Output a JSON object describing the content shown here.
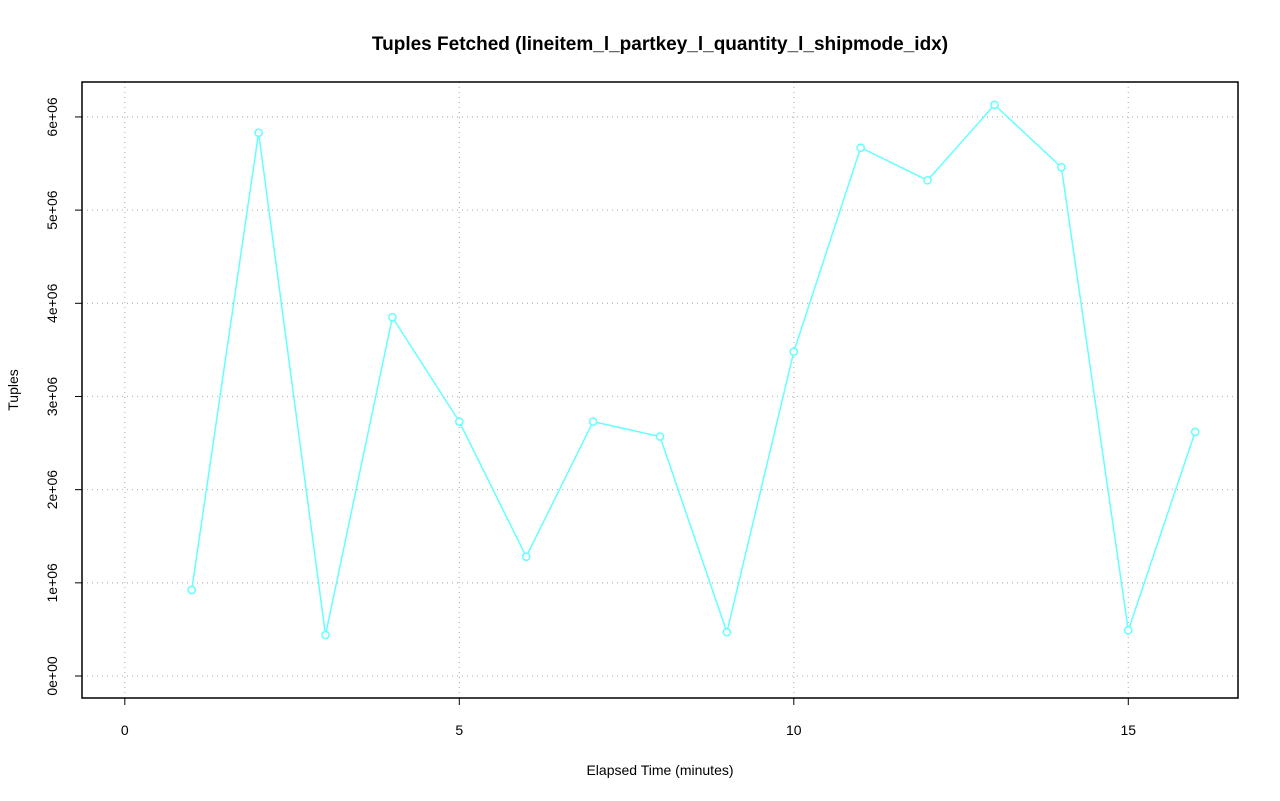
{
  "chart_data": {
    "type": "line",
    "title": "Tuples Fetched (lineitem_l_partkey_l_quantity_l_shipmode_idx)",
    "x_label": "Elapsed Time (minutes)",
    "y_label": "Tuples",
    "x": [
      1,
      2,
      3,
      4,
      5,
      6,
      7,
      8,
      9,
      10,
      11,
      12,
      13,
      14,
      15,
      16
    ],
    "series": [
      {
        "color": "#66ffff",
        "values": [
          923000,
          5830000,
          440000,
          3850000,
          2730000,
          1280000,
          2730000,
          2570000,
          470000,
          3480000,
          5670000,
          5320000,
          6130000,
          5460000,
          490000,
          2620000
        ]
      }
    ],
    "xlim": [
      -0.64,
      16.64
    ],
    "xticks": [
      0,
      5,
      10,
      15
    ],
    "ylim": [
      -236000,
      6375000
    ],
    "yticks": [
      {
        "value": 0,
        "label": "0e+00"
      },
      {
        "value": 1000000,
        "label": "1e+06"
      },
      {
        "value": 2000000,
        "label": "2e+06"
      },
      {
        "value": 3000000,
        "label": "3e+06"
      },
      {
        "value": 4000000,
        "label": "4e+06"
      },
      {
        "value": 5000000,
        "label": "5e+06"
      },
      {
        "value": 6000000,
        "label": "6e+06"
      }
    ],
    "grid": true
  }
}
